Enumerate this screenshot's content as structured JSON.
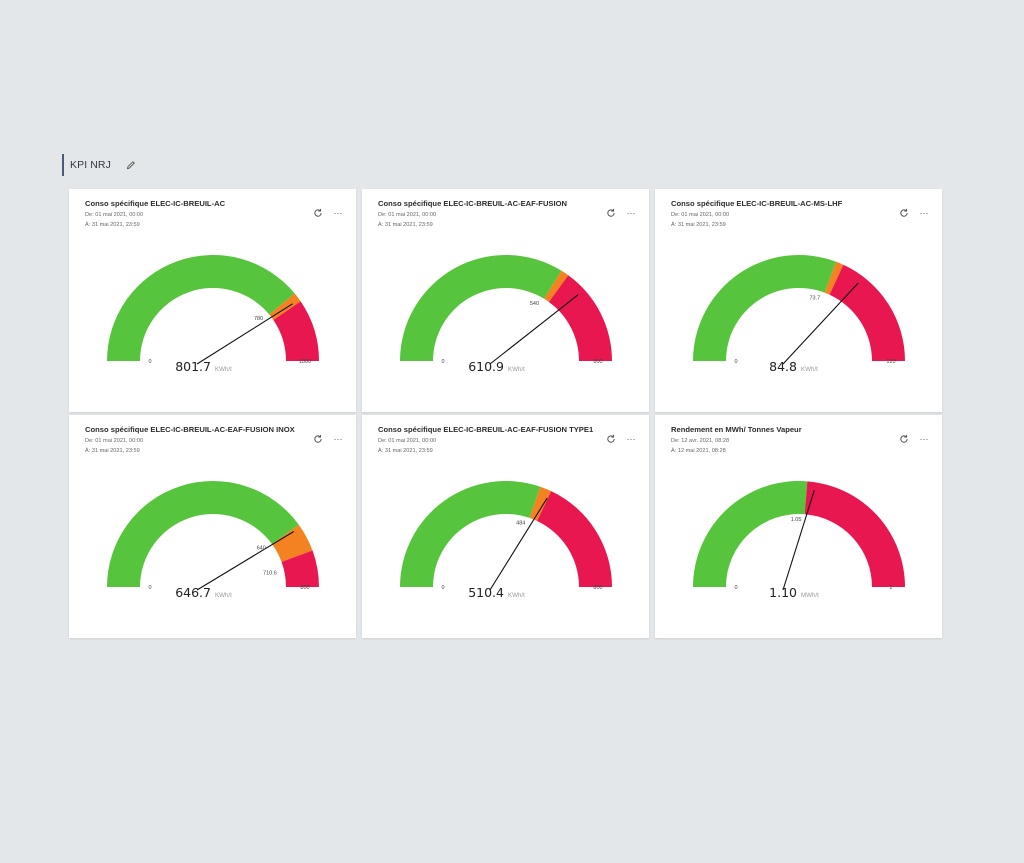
{
  "section": {
    "title": "KPI NRJ",
    "edit_icon": "pencil-icon"
  },
  "colors": {
    "green": "#57c43d",
    "orange": "#f58220",
    "red": "#e8174f",
    "needle": "#111111"
  },
  "icons": {
    "refresh": "refresh-icon",
    "more": "more-horizontal-icon",
    "more_glyph": "···"
  },
  "cards": [
    {
      "title": "Conso spécifique ELEC-IC-BREUIL-AC",
      "from": "De: 01 mai 2021, 00:00",
      "to": "À: 31 mai 2021, 23:59",
      "min": 0,
      "max": 1000,
      "min_label": "0",
      "max_label": "1000",
      "warn": 780,
      "alarm": 810,
      "thresholds": [
        {
          "value": 780,
          "label": "780"
        }
      ],
      "value": 801.7,
      "value_label": "801.7",
      "unit": "KWh/t"
    },
    {
      "title": "Conso spécifique ELEC-IC-BREUIL-AC-EAF-FUSION",
      "from": "De: 01 mai 2021, 00:00",
      "to": "À: 31 mai 2021, 23:59",
      "min": 0,
      "max": 800,
      "min_label": "0",
      "max_label": "800",
      "warn": 540,
      "alarm": 560,
      "thresholds": [
        {
          "value": 540,
          "label": "540"
        }
      ],
      "value": 610.9,
      "value_label": "610.9",
      "unit": "KWh/t"
    },
    {
      "title": "Conso spécifique ELEC-IC-BREUIL-AC-MS-LHF",
      "from": "De: 01 mai 2021, 00:00",
      "to": "À: 31 mai 2021, 23:59",
      "min": 0,
      "max": 120,
      "min_label": "0",
      "max_label": "120",
      "warn": 73.7,
      "alarm": 76.5,
      "thresholds": [
        {
          "value": 73.7,
          "label": "73.7"
        }
      ],
      "value": 84.8,
      "value_label": "84.8",
      "unit": "KWh/t"
    },
    {
      "title": "Conso spécifique ELEC-IC-BREUIL-AC-EAF-FUSION INOX",
      "from": "De: 01 mai 2021, 00:00",
      "to": "À: 31 mai 2021, 23:59",
      "min": 0,
      "max": 800,
      "min_label": "0",
      "max_label": "800",
      "warn": 640,
      "alarm": 710.6,
      "thresholds": [
        {
          "value": 640,
          "label": "640"
        },
        {
          "value": 710.6,
          "label": "710.6"
        }
      ],
      "value": 646.7,
      "value_label": "646.7",
      "unit": "KWh/t"
    },
    {
      "title": "Conso spécifique ELEC-IC-BREUIL-AC-EAF-FUSION TYPE1",
      "from": "De: 01 mai 2021, 00:00",
      "to": "À: 31 mai 2021, 23:59",
      "min": 0,
      "max": 800,
      "min_label": "0",
      "max_label": "800",
      "warn": 484,
      "alarm": 512,
      "thresholds": [
        {
          "value": 484,
          "label": "484"
        }
      ],
      "value": 510.4,
      "value_label": "510.4",
      "unit": "KWh/t"
    },
    {
      "title": "Rendement en MWh/ Tonnes Vapeur",
      "from": "De: 12 avr. 2021, 08:28",
      "to": "À: 12 mai 2021, 08:28",
      "min": 0,
      "max": 2,
      "min_label": "0",
      "max_label": "2",
      "warn": 1.05,
      "alarm": 1.05,
      "thresholds": [
        {
          "value": 1.05,
          "label": "1.05"
        }
      ],
      "value": 1.1,
      "value_label": "1.10",
      "unit": "MWh/t"
    }
  ]
}
